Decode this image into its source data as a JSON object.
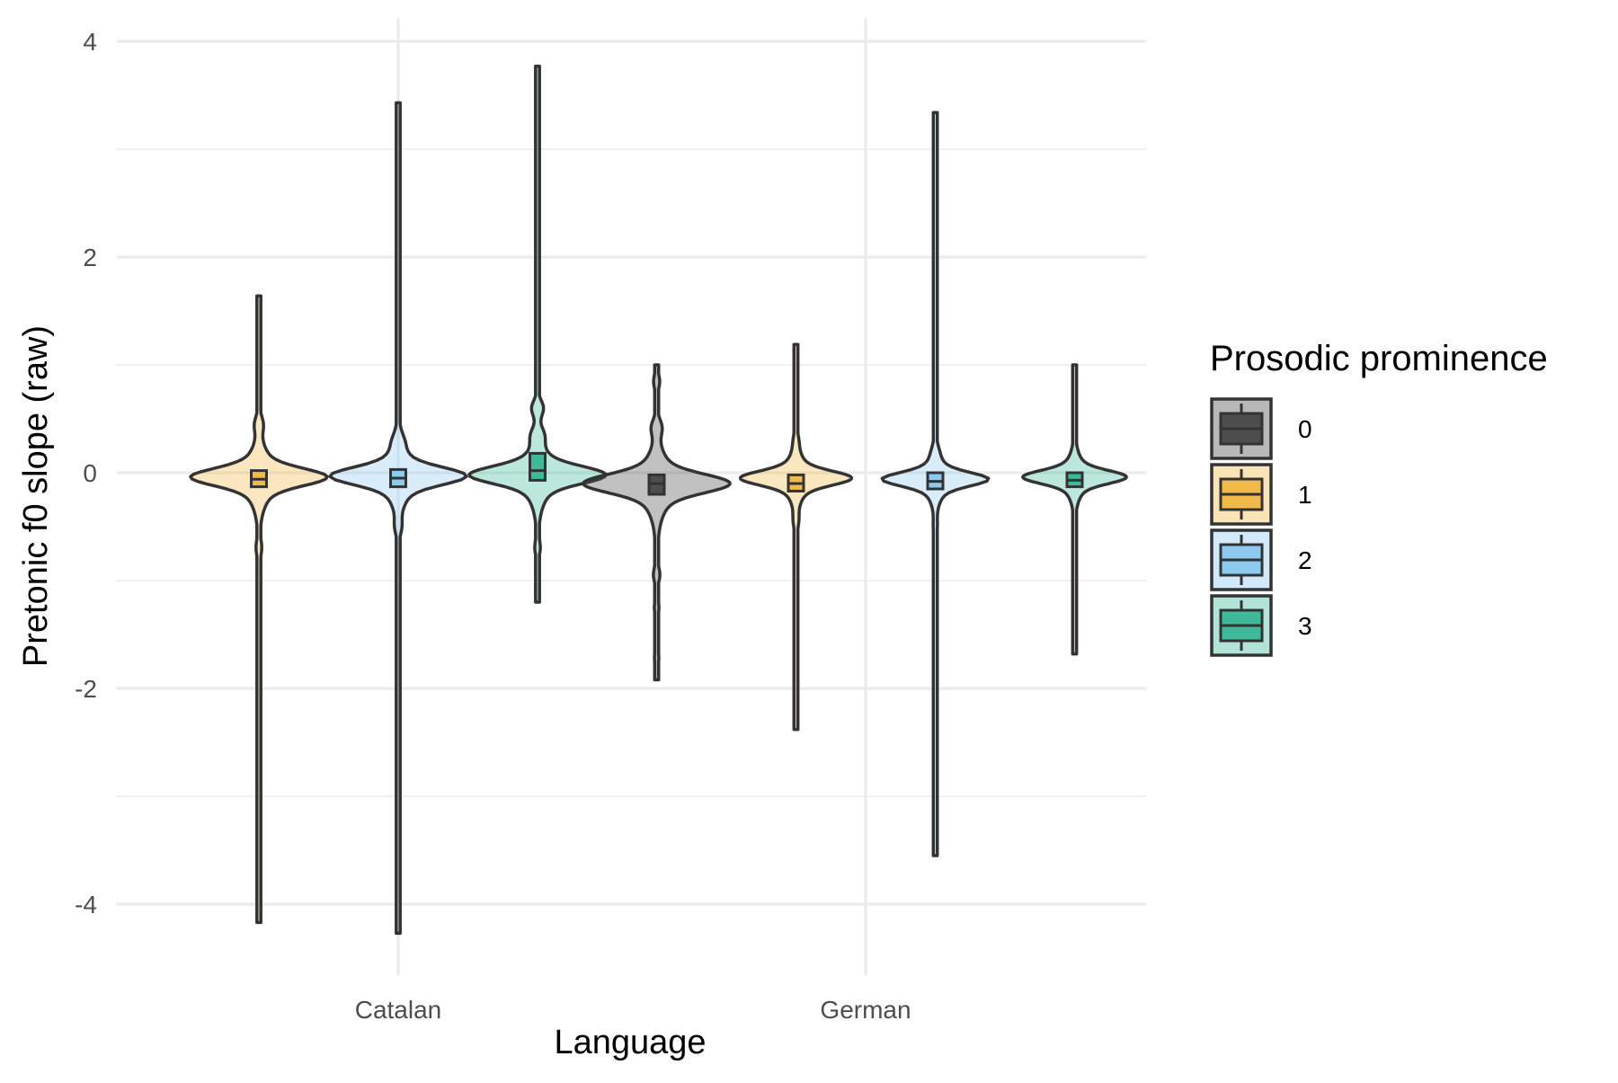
{
  "chart_data": {
    "type": "violin",
    "xlabel": "Language",
    "ylabel": "Pretonic f0 slope (raw)",
    "ylim": [
      -4.5,
      4.2
    ],
    "y_ticks": [
      4,
      2,
      0,
      -2,
      -4
    ],
    "y_tick_labels": [
      "4",
      "2",
      "0",
      "-2",
      "-4"
    ],
    "grid": true,
    "legend_position": "right",
    "legend": {
      "title": "Prosodic prominence",
      "items": [
        {
          "label": "0",
          "color": "#4d4d4d"
        },
        {
          "label": "1",
          "color": "#f0b94a"
        },
        {
          "label": "2",
          "color": "#8ec9ef"
        },
        {
          "label": "3",
          "color": "#3fb99a"
        }
      ]
    },
    "categories": [
      "Catalan",
      "German"
    ],
    "series": [
      {
        "name": "0",
        "values": [
          null,
          {
            "min": -1.92,
            "max": 1.0,
            "q1": -0.2,
            "median": -0.1,
            "q3": -0.02,
            "mode": -0.1,
            "peak_width": 0.58,
            "bumps": [
              [
                0.85,
                0.05
              ],
              [
                0.42,
                0.07
              ],
              [
                -0.95,
                0.05
              ],
              [
                -1.25,
                0.04
              ],
              [
                -1.72,
                0.04
              ]
            ]
          }
        ]
      },
      {
        "name": "1",
        "values": [
          {
            "min": -4.17,
            "max": 1.64,
            "q1": -0.13,
            "median": -0.06,
            "q3": 0.02,
            "mode": -0.04,
            "peak_width": 0.54,
            "bumps": [
              [
                0.45,
                0.06
              ],
              [
                -0.7,
                0.04
              ],
              [
                -0.9,
                0.03
              ]
            ]
          },
          {
            "min": -2.38,
            "max": 1.19,
            "q1": -0.17,
            "median": -0.1,
            "q3": -0.02,
            "mode": -0.05,
            "peak_width": 0.44,
            "bumps": [
              [
                0.3,
                0.03
              ],
              [
                -0.45,
                0.04
              ],
              [
                -1.0,
                0.025
              ]
            ]
          }
        ]
      },
      {
        "name": "2",
        "values": [
          {
            "min": -4.27,
            "max": 3.43,
            "q1": -0.13,
            "median": -0.05,
            "q3": 0.03,
            "mode": -0.03,
            "peak_width": 0.54,
            "bumps": [
              [
                0.3,
                0.05
              ],
              [
                -0.5,
                0.04
              ]
            ]
          },
          {
            "min": -3.55,
            "max": 3.34,
            "q1": -0.15,
            "median": -0.08,
            "q3": 0.0,
            "mode": -0.06,
            "peak_width": 0.42,
            "bumps": [
              [
                0.2,
                0.03
              ],
              [
                -0.5,
                0.03
              ]
            ]
          }
        ]
      },
      {
        "name": "3",
        "values": [
          {
            "min": -1.2,
            "max": 3.77,
            "q1": -0.07,
            "median": 0.02,
            "q3": 0.18,
            "mode": -0.02,
            "peak_width": 0.54,
            "bumps": [
              [
                0.6,
                0.1
              ],
              [
                0.35,
                0.08
              ],
              [
                -0.7,
                0.04
              ]
            ]
          },
          {
            "min": -1.68,
            "max": 1.0,
            "q1": -0.13,
            "median": -0.07,
            "q3": 0.0,
            "mode": -0.04,
            "peak_width": 0.41,
            "bumps": [
              [
                0.6,
                0.02
              ],
              [
                -0.6,
                0.02
              ]
            ]
          }
        ]
      }
    ]
  }
}
